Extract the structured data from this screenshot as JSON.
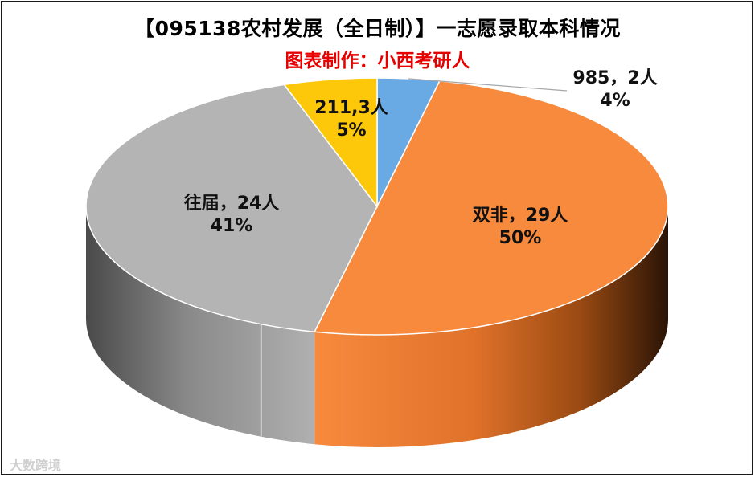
{
  "chart_data": {
    "type": "pie",
    "title": "【095138农村发展（全日制）】一志愿录取本科情况",
    "subtitle": "图表制作：小西考研人",
    "slices": [
      {
        "name": "985",
        "value": 2,
        "unit": "人",
        "percent": "4%",
        "color": "#6aaae4"
      },
      {
        "name": "双非",
        "value": 29,
        "unit": "人",
        "percent": "50%",
        "color": "#f78a3d"
      },
      {
        "name": "往届",
        "value": 24,
        "unit": "人",
        "percent": "41%",
        "color": "#b4b4b4"
      },
      {
        "name": "211",
        "value": 3,
        "unit": "人",
        "percent": "5%",
        "color": "#fdc80a"
      }
    ],
    "labels": {
      "s985": "985，2人",
      "s985_pct": "4%",
      "shuangfei": "双非，29人",
      "shuangfei_pct": "50%",
      "wangjie": "往届，24人",
      "wangjie_pct": "41%",
      "s211": "211,3人",
      "s211_pct": "5%"
    }
  },
  "watermark": "大数跨境"
}
